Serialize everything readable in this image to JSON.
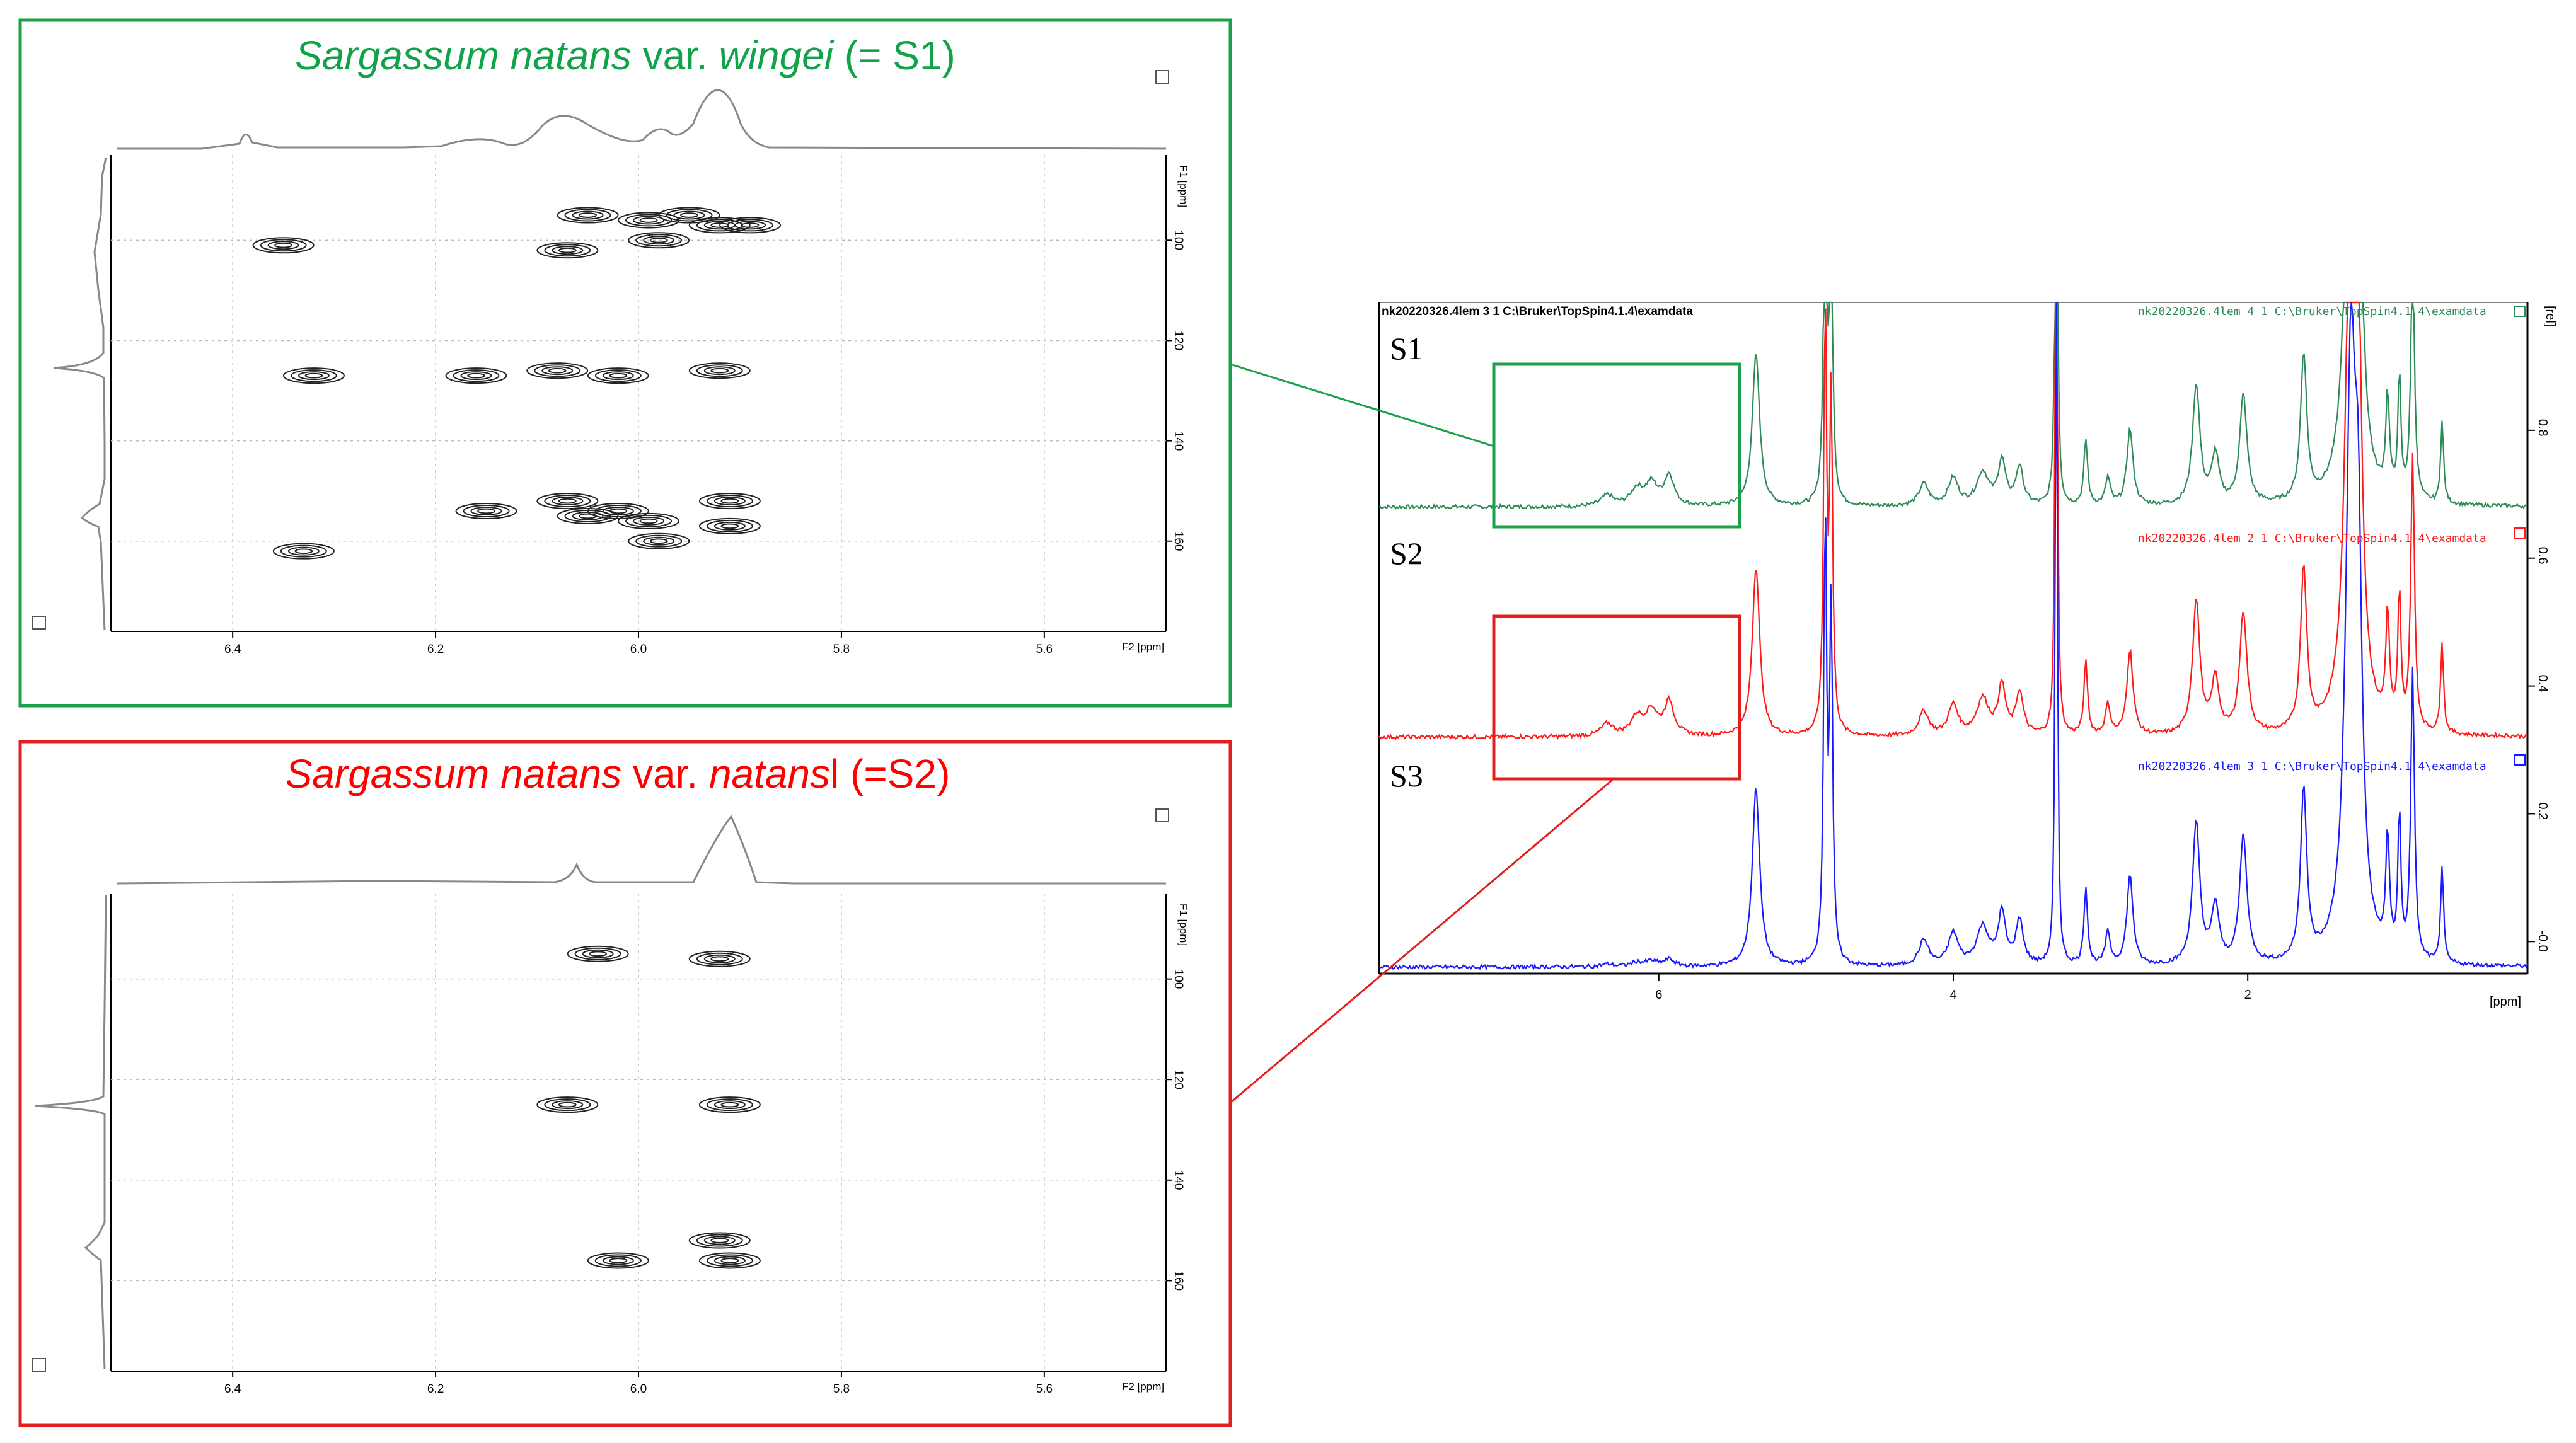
{
  "colors": {
    "s1": "#2e8b57",
    "s2": "#ff1a1a",
    "s3": "#1a1aff",
    "panel1_border": "#1aa14a",
    "panel2_border": "#e02020",
    "title1": "#12a24a",
    "title2": "#ff0000"
  },
  "panels": [
    {
      "title_italic_1": "Sargassum natans",
      "title_plain_1": " var. ",
      "title_italic_2": "wingei",
      "title_plain_2": " (= S1)",
      "f1_label": "F1 [ppm]",
      "f2_label": "F2 [ppm]"
    },
    {
      "title_italic_1": "Sargassum natans",
      "title_plain_1": " var. ",
      "title_italic_2": "natans",
      "title_plain_2": "l (=S2)",
      "f1_label": "F1 [ppm]",
      "f2_label": "F2 [ppm]"
    }
  ],
  "spectrum": {
    "header": "nk20220326.4lem  3  1  C:\\Bruker\\TopSpin4.1.4\\examdata",
    "series_labels": [
      "S1",
      "S2",
      "S3"
    ],
    "legends": [
      "nk20220326.4lem  4  1  C:\\Bruker\\TopSpin4.1.4\\examdata",
      "nk20220326.4lem  2  1  C:\\Bruker\\TopSpin4.1.4\\examdata",
      "nk20220326.4lem  3  1  C:\\Bruker\\TopSpin4.1.4\\examdata"
    ],
    "x_unit": "[ppm]",
    "y_unit": "[rel]"
  },
  "chart_data": [
    {
      "type": "scatter",
      "title": "Sargassum natans var. wingei (= S1)",
      "xlabel": "F2 [ppm]",
      "ylabel": "F1 [ppm]",
      "xlim": [
        6.52,
        5.48
      ],
      "ylim": [
        178,
        83
      ],
      "x_ticks": [
        "6.4",
        "6.2",
        "6.0",
        "5.8",
        "5.6"
      ],
      "y_ticks": [
        "100",
        "120",
        "140",
        "160"
      ],
      "cross_peaks": [
        {
          "x": 6.35,
          "y": 101
        },
        {
          "x": 6.32,
          "y": 127
        },
        {
          "x": 6.33,
          "y": 162
        },
        {
          "x": 6.16,
          "y": 127
        },
        {
          "x": 6.15,
          "y": 154
        },
        {
          "x": 6.07,
          "y": 102
        },
        {
          "x": 6.08,
          "y": 126
        },
        {
          "x": 6.07,
          "y": 152
        },
        {
          "x": 6.05,
          "y": 155
        },
        {
          "x": 6.02,
          "y": 154
        },
        {
          "x": 5.99,
          "y": 156
        },
        {
          "x": 6.05,
          "y": 95
        },
        {
          "x": 5.99,
          "y": 96
        },
        {
          "x": 5.98,
          "y": 100
        },
        {
          "x": 5.95,
          "y": 95
        },
        {
          "x": 5.92,
          "y": 97
        },
        {
          "x": 5.89,
          "y": 97
        },
        {
          "x": 5.92,
          "y": 126
        },
        {
          "x": 5.91,
          "y": 152
        },
        {
          "x": 5.91,
          "y": 157
        },
        {
          "x": 5.98,
          "y": 160
        },
        {
          "x": 6.02,
          "y": 127
        }
      ]
    },
    {
      "type": "scatter",
      "title": "Sargassum natans var. natansl (=S2)",
      "xlabel": "F2 [ppm]",
      "ylabel": "F1 [ppm]",
      "xlim": [
        6.52,
        5.48
      ],
      "ylim": [
        178,
        83
      ],
      "x_ticks": [
        "6.4",
        "6.2",
        "6.0",
        "5.8",
        "5.6"
      ],
      "y_ticks": [
        "100",
        "120",
        "140",
        "160"
      ],
      "cross_peaks": [
        {
          "x": 6.04,
          "y": 95
        },
        {
          "x": 5.92,
          "y": 96
        },
        {
          "x": 6.07,
          "y": 125
        },
        {
          "x": 5.91,
          "y": 125
        },
        {
          "x": 5.92,
          "y": 152
        },
        {
          "x": 5.91,
          "y": 156
        },
        {
          "x": 6.02,
          "y": 156
        }
      ]
    },
    {
      "type": "line",
      "title": "",
      "xlabel": "[ppm]",
      "ylabel": "[rel]",
      "xlim": [
        7.9,
        0.1
      ],
      "ylim": [
        -0.05,
        1.0
      ],
      "x_ticks": [
        "6",
        "4",
        "2"
      ],
      "y_ticks": [
        "-0.0",
        "0.2",
        "0.4",
        "0.6",
        "0.8"
      ],
      "series": [
        {
          "name": "S1",
          "offset": 0.68
        },
        {
          "name": "S2",
          "offset": 0.32
        },
        {
          "name": "S3",
          "offset": -0.04
        }
      ],
      "peaks": [
        {
          "x": 6.15,
          "h": 0.03,
          "w": 0.05
        },
        {
          "x": 6.05,
          "h": 0.04,
          "w": 0.05
        },
        {
          "x": 5.93,
          "h": 0.055,
          "w": 0.04
        },
        {
          "x": 6.35,
          "h": 0.02,
          "w": 0.05
        },
        {
          "x": 5.34,
          "h": 0.28,
          "w": 0.03
        },
        {
          "x": 4.87,
          "h": 0.7,
          "w": 0.012
        },
        {
          "x": 4.83,
          "h": 0.55,
          "w": 0.012
        },
        {
          "x": 4.2,
          "h": 0.04,
          "w": 0.04
        },
        {
          "x": 4.0,
          "h": 0.05,
          "w": 0.04
        },
        {
          "x": 3.8,
          "h": 0.06,
          "w": 0.05
        },
        {
          "x": 3.67,
          "h": 0.08,
          "w": 0.03
        },
        {
          "x": 3.55,
          "h": 0.07,
          "w": 0.03
        },
        {
          "x": 3.3,
          "h": 1.2,
          "w": 0.008
        },
        {
          "x": 3.1,
          "h": 0.12,
          "w": 0.015
        },
        {
          "x": 2.95,
          "h": 0.05,
          "w": 0.02
        },
        {
          "x": 2.8,
          "h": 0.14,
          "w": 0.025
        },
        {
          "x": 2.35,
          "h": 0.22,
          "w": 0.03
        },
        {
          "x": 2.22,
          "h": 0.09,
          "w": 0.03
        },
        {
          "x": 2.03,
          "h": 0.2,
          "w": 0.03
        },
        {
          "x": 1.62,
          "h": 0.27,
          "w": 0.025
        },
        {
          "x": 1.3,
          "h": 0.9,
          "w": 0.04
        },
        {
          "x": 1.25,
          "h": 0.5,
          "w": 0.03
        },
        {
          "x": 1.05,
          "h": 0.18,
          "w": 0.015
        },
        {
          "x": 0.97,
          "h": 0.22,
          "w": 0.012
        },
        {
          "x": 0.88,
          "h": 0.45,
          "w": 0.015
        },
        {
          "x": 0.68,
          "h": 0.15,
          "w": 0.012
        }
      ]
    }
  ]
}
